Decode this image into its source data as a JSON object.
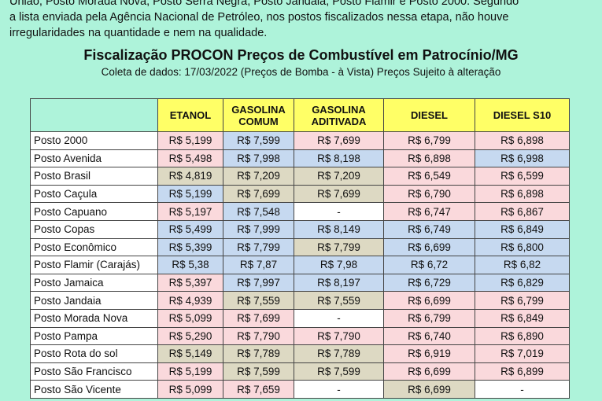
{
  "intro": [
    "União, Posto Morada Nova, Posto Serra Negra, Posto Jandaia, Posto Flamir e Posto 2000. Segundo",
    "a lista enviada pela Agência Nacional de Petróleo, nos postos fiscalizados nessa etapa, não houve",
    "irregularidades na quantidade e nem na qualidade."
  ],
  "title": "Fiscalização PROCON Preços de Combustível em Patrocínio/MG",
  "subtitle": "Coleta de dados: 17/03/2022 (Preços de Bomba - à Vista) Preços Sujeito à alteração",
  "table": {
    "header": [
      "",
      "ETANOL",
      "GASOLINA COMUM",
      "GASOLINA ADITIVADA",
      "DIESEL",
      "DIESEL S10"
    ],
    "header_color": "#ffff66",
    "rows": [
      [
        "Posto 2000",
        "R$ 5,199",
        "R$ 7,599",
        "R$ 7,699",
        "R$ 6,799",
        "R$ 6,898"
      ],
      [
        "Posto Avenida",
        "R$ 5,498",
        "R$ 7,998",
        "R$ 8,198",
        "R$ 6,898",
        "R$ 6,998"
      ],
      [
        "Posto Brasil",
        "R$ 4,819",
        "R$ 7,209",
        "R$ 7,209",
        "R$ 6,549",
        "R$ 6,599"
      ],
      [
        "Posto Caçula",
        "R$ 5,199",
        "R$ 7,699",
        "R$ 7,699",
        "R$ 6,790",
        "R$ 6,898"
      ],
      [
        "Posto Capuano",
        "R$ 5,197",
        "R$ 7,548",
        "-",
        "R$ 6,747",
        "R$ 6,867"
      ],
      [
        "Posto Copas",
        "R$ 5,499",
        "R$ 7,999",
        "R$ 8,149",
        "R$ 6,749",
        "R$ 6,849"
      ],
      [
        "Posto Econômico",
        "R$ 5,399",
        "R$ 7,799",
        "R$ 7,799",
        "R$ 6,699",
        "R$ 6,800"
      ],
      [
        "Posto Flamir (Carajás)",
        "R$ 5,38",
        "R$ 7,87",
        "R$ 7,98",
        "R$ 6,72",
        "R$ 6,82"
      ],
      [
        "Posto Jamaica",
        "R$ 5,397",
        "R$ 7,997",
        "R$ 8,197",
        "R$ 6,729",
        "R$ 6,829"
      ],
      [
        "Posto Jandaia",
        "R$ 4,939",
        "R$ 7,559",
        "R$ 7,559",
        "R$ 6,699",
        "R$ 6,799"
      ],
      [
        "Posto Morada Nova",
        "R$ 5,099",
        "R$ 7,699",
        "-",
        "R$ 6,799",
        "R$ 6,849"
      ],
      [
        "Posto Pampa",
        "R$ 5,290",
        "R$ 7,790",
        "R$ 7,790",
        "R$ 6,740",
        "R$ 6,890"
      ],
      [
        "Posto Rota do sol",
        "R$ 5,149",
        "R$ 7,789",
        "R$ 7,789",
        "R$ 6,919",
        "R$ 7,019"
      ],
      [
        "Posto São Francisco",
        "R$ 5,199",
        "R$ 7,599",
        "R$ 7,599",
        "R$ 6,699",
        "R$ 6,899"
      ],
      [
        "Posto São Vicente",
        "R$ 5,099",
        "R$ 7,659",
        "-",
        "R$ 6,699",
        "-"
      ]
    ],
    "colors": [
      [
        "#ffffff",
        "#fad9dc",
        "#c6d9f0",
        "#fad9dc",
        "#fad9dc",
        "#fad9dc"
      ],
      [
        "#ffffff",
        "#fad9dc",
        "#c6d9f0",
        "#c6d9f0",
        "#fad9dc",
        "#c6d9f0"
      ],
      [
        "#ffffff",
        "#ddd9c3",
        "#ddd9c3",
        "#ddd9c3",
        "#fad9dc",
        "#fad9dc"
      ],
      [
        "#ffffff",
        "#c6d9f0",
        "#ddd9c3",
        "#ddd9c3",
        "#fad9dc",
        "#fad9dc"
      ],
      [
        "#ffffff",
        "#fad9dc",
        "#c6d9f0",
        "#ffffff",
        "#fad9dc",
        "#fad9dc"
      ],
      [
        "#ffffff",
        "#c6d9f0",
        "#c6d9f0",
        "#c6d9f0",
        "#c6d9f0",
        "#c6d9f0"
      ],
      [
        "#ffffff",
        "#c6d9f0",
        "#c6d9f0",
        "#ddd9c3",
        "#c6d9f0",
        "#c6d9f0"
      ],
      [
        "#ffffff",
        "#c6d9f0",
        "#c6d9f0",
        "#c6d9f0",
        "#c6d9f0",
        "#c6d9f0"
      ],
      [
        "#ffffff",
        "#fad9dc",
        "#c6d9f0",
        "#c6d9f0",
        "#c6d9f0",
        "#c6d9f0"
      ],
      [
        "#ffffff",
        "#fad9dc",
        "#ddd9c3",
        "#ddd9c3",
        "#fad9dc",
        "#fad9dc"
      ],
      [
        "#ffffff",
        "#fad9dc",
        "#fad9dc",
        "#ffffff",
        "#fad9dc",
        "#fad9dc"
      ],
      [
        "#ffffff",
        "#fad9dc",
        "#fad9dc",
        "#fad9dc",
        "#fad9dc",
        "#fad9dc"
      ],
      [
        "#ffffff",
        "#ddd9c3",
        "#ddd9c3",
        "#ddd9c3",
        "#fad9dc",
        "#fad9dc"
      ],
      [
        "#ffffff",
        "#fad9dc",
        "#ddd9c3",
        "#ddd9c3",
        "#fad9dc",
        "#fad9dc"
      ],
      [
        "#ffffff",
        "#fad9dc",
        "#fad9dc",
        "#ffffff",
        "#ddd9c3",
        "#ffffff"
      ]
    ]
  }
}
